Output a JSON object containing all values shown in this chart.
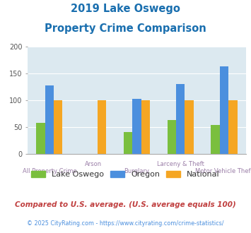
{
  "title_line1": "2019 Lake Oswego",
  "title_line2": "Property Crime Comparison",
  "title_color": "#1a6faf",
  "categories": [
    "All Property Crime",
    "Arson",
    "Burglary",
    "Larceny & Theft",
    "Motor Vehicle Theft"
  ],
  "series": {
    "Lake Oswego": {
      "values": [
        58,
        null,
        40,
        63,
        54
      ],
      "color": "#7abf3e"
    },
    "Oregon": {
      "values": [
        128,
        null,
        103,
        130,
        163
      ],
      "color": "#4b8fde"
    },
    "National": {
      "values": [
        100,
        100,
        100,
        100,
        100
      ],
      "color": "#f5a623"
    }
  },
  "ylim": [
    0,
    200
  ],
  "yticks": [
    0,
    50,
    100,
    150,
    200
  ],
  "background_color": "#dce9f0",
  "grid_color": "#ffffff",
  "xlabel_color": "#9b7fa8",
  "legend_labels": [
    "Lake Oswego",
    "Oregon",
    "National"
  ],
  "legend_colors": [
    "#7abf3e",
    "#4b8fde",
    "#f5a623"
  ],
  "footnote1": "Compared to U.S. average. (U.S. average equals 100)",
  "footnote2": "© 2025 CityRating.com - https://www.cityrating.com/crime-statistics/",
  "footnote1_color": "#c04040",
  "footnote2_color": "#4b8fde",
  "footnote2_link": "https://www.cityrating.com/crime-statistics/"
}
